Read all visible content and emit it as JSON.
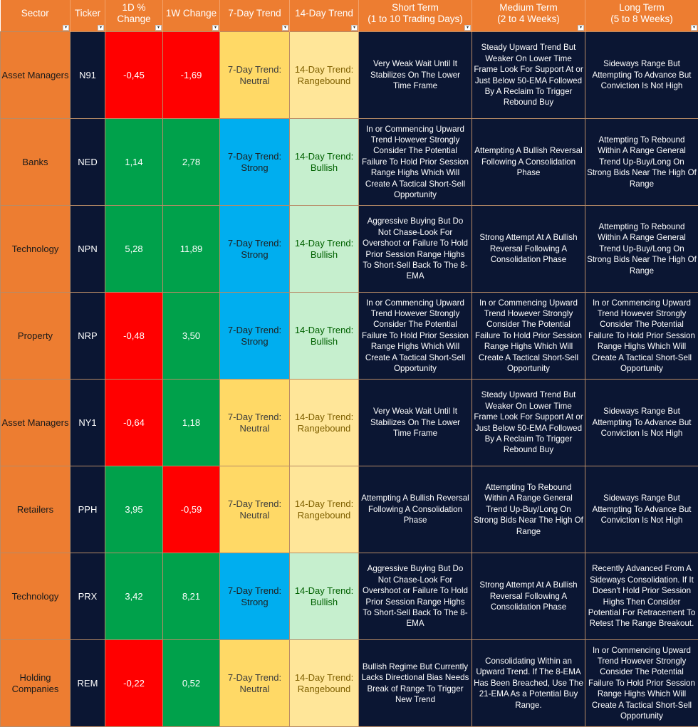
{
  "headers": {
    "sector": "Sector",
    "ticker": "Ticker",
    "d1": "1D % Change",
    "w1": "1W Change",
    "t7": "7-Day Trend",
    "t14": "14-Day Trend",
    "short": "Short Term",
    "short_sub": "(1 to 10 Trading Days)",
    "medium": "Medium Term",
    "medium_sub": "(2 to 4 Weeks)",
    "long": "Long Term",
    "long_sub": "(5 to 8 Weeks)"
  },
  "dropdown_icon": "▾",
  "colors": {
    "header": "#ED7D31",
    "dark": "#0B1633",
    "negative": "#FF0000",
    "positive": "#00A14B",
    "neutral": "#FFD966",
    "strong": "#00AEEF",
    "rangebound": "#FFE699",
    "bullish": "#C6EFCE"
  },
  "rows": [
    {
      "sector": "Asset Managers",
      "ticker": "N91",
      "d1": "-0,45",
      "w1": "-1,69",
      "t7": "7-Day Trend: Neutral",
      "t14": "14-Day Trend: Rangebound",
      "short": "Very Weak Wait Until It Stabilizes On The Lower Time Frame",
      "medium": "Steady Upward Trend But Weaker On Lower Time Frame Look For Support At or Just Below 50-EMA Followed By A Reclaim To Trigger Rebound Buy",
      "long": "Sideways Range But Attempting To Advance But Conviction Is Not High"
    },
    {
      "sector": "Banks",
      "ticker": "NED",
      "d1": "1,14",
      "w1": "2,78",
      "t7": "7-Day Trend: Strong",
      "t14": "14-Day Trend: Bullish",
      "short": "In or Commencing Upward Trend However Strongly Consider The Potential Failure To Hold Prior Session Range Highs Which Will Create A Tactical Short-Sell Opportunity",
      "medium": "Attempting A Bullish Reversal Following A Consolidation Phase",
      "long": "Attempting To Rebound Within A Range General Trend Up-Buy/Long On Strong Bids Near The High Of Range"
    },
    {
      "sector": "Technology",
      "ticker": "NPN",
      "d1": "5,28",
      "w1": "11,89",
      "t7": "7-Day Trend: Strong",
      "t14": "14-Day Trend: Bullish",
      "short": "Aggressive Buying But Do Not Chase-Look For Overshoot or Failure To Hold Prior Session Range Highs To Short-Sell Back To The 8-EMA",
      "medium": "Strong Attempt At A Bullish Reversal Following A Consolidation Phase",
      "long": "Attempting To Rebound Within A Range General Trend Up-Buy/Long On Strong Bids Near The High Of Range"
    },
    {
      "sector": "Property",
      "ticker": "NRP",
      "d1": "-0,48",
      "w1": "3,50",
      "t7": "7-Day Trend: Strong",
      "t14": "14-Day Trend: Bullish",
      "short": "In or Commencing Upward Trend However Strongly Consider The Potential Failure To Hold Prior Session Range Highs Which Will Create A Tactical Short-Sell Opportunity",
      "medium": "In or Commencing Upward Trend However Strongly Consider The Potential Failure To Hold Prior Session Range Highs Which Will Create A Tactical Short-Sell Opportunity",
      "long": "In or Commencing Upward Trend However Strongly Consider The Potential Failure To Hold Prior Session Range Highs Which Will Create A Tactical Short-Sell Opportunity"
    },
    {
      "sector": "Asset Managers",
      "ticker": "NY1",
      "d1": "-0,64",
      "w1": "1,18",
      "t7": "7-Day Trend: Neutral",
      "t14": "14-Day Trend: Rangebound",
      "short": "Very Weak Wait Until It Stabilizes On The Lower Time Frame",
      "medium": "Steady Upward Trend But Weaker On Lower Time Frame Look For Support At or Just Below 50-EMA Followed By A Reclaim To Trigger Rebound Buy",
      "long": "Sideways Range But Attempting To Advance But Conviction Is Not High"
    },
    {
      "sector": "Retailers",
      "ticker": "PPH",
      "d1": "3,95",
      "w1": "-0,59",
      "t7": "7-Day Trend: Neutral",
      "t14": "14-Day Trend: Rangebound",
      "short": "Attempting A Bullish Reversal Following A Consolidation Phase",
      "medium": "Attempting To Rebound Within A Range General Trend Up-Buy/Long On Strong Bids Near The High Of Range",
      "long": "Sideways Range But Attempting To Advance But Conviction Is Not High"
    },
    {
      "sector": "Technology",
      "ticker": "PRX",
      "d1": "3,42",
      "w1": "8,21",
      "t7": "7-Day Trend: Strong",
      "t14": "14-Day Trend: Bullish",
      "short": "Aggressive Buying But Do Not Chase-Look For Overshoot or Failure To Hold Prior Session Range Highs To Short-Sell Back To The 8-EMA",
      "medium": "Strong Attempt At A Bullish Reversal Following A Consolidation Phase",
      "long": "Recently Advanced From A Sideways Consolidation. If It Doesn't Hold Prior Session Highs Then Consider Potential For Retracement To Retest The Range Breakout."
    },
    {
      "sector": "Holding Companies",
      "ticker": "REM",
      "d1": "-0,22",
      "w1": "0,52",
      "t7": "7-Day Trend: Neutral",
      "t14": "14-Day Trend: Rangebound",
      "short": "Bullish Regime But Currently Lacks Directional Bias Needs Break of Range To Trigger New Trend",
      "medium": "Consolidating Within an Upward Trend. If The 8-EMA Has Been Breached, Use The 21-EMA As a Potential Buy Range.",
      "long": "In or Commencing Upward Trend However Strongly Consider The Potential Failure To Hold Prior Session Range Highs Which Will Create A Tactical Short-Sell Opportunity"
    }
  ]
}
